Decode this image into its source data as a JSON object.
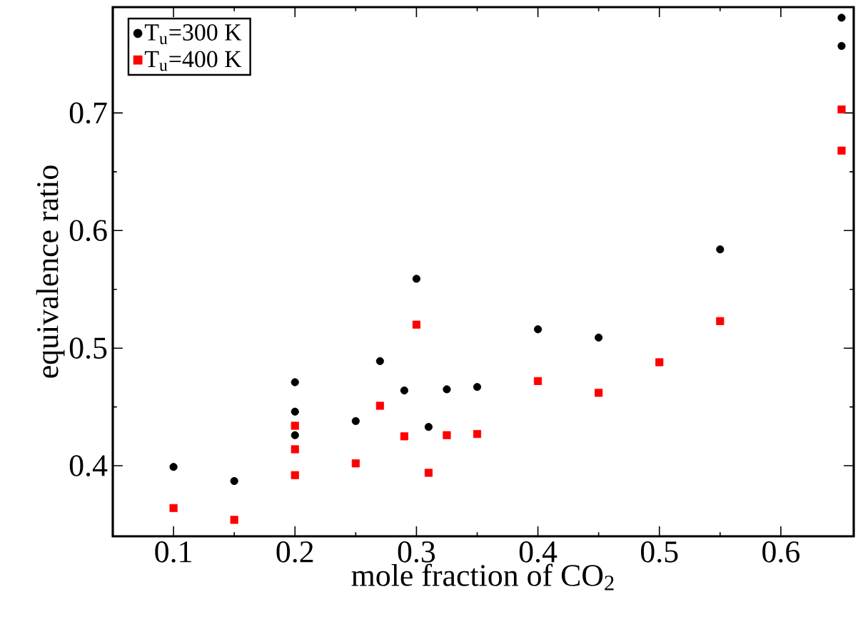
{
  "chart_data": {
    "type": "scatter",
    "xlabel": "mole fraction of CO$_{2}$",
    "ylabel": "equivalence ratio",
    "xlim": [
      0.05,
      0.66
    ],
    "ylim": [
      0.34,
      0.79
    ],
    "xticks": [
      0.1,
      0.2,
      0.3,
      0.4,
      0.5,
      0.6
    ],
    "yticks": [
      0.4,
      0.5,
      0.6,
      0.7
    ],
    "grid": false,
    "legend": "top left",
    "series": [
      {
        "name": "T$_{u}$=300 K",
        "color": "#000000",
        "marker": "circle",
        "x": [
          0.1,
          0.15,
          0.2,
          0.2,
          0.2,
          0.25,
          0.27,
          0.29,
          0.3,
          0.31,
          0.325,
          0.35,
          0.4,
          0.45,
          0.55,
          0.65,
          0.65
        ],
        "values": [
          0.399,
          0.387,
          0.471,
          0.446,
          0.426,
          0.438,
          0.489,
          0.464,
          0.559,
          0.433,
          0.465,
          0.467,
          0.516,
          0.509,
          0.584,
          0.781,
          0.757
        ]
      },
      {
        "name": "T$_{u}$=400 K",
        "color": "#ff0000",
        "marker": "square",
        "x": [
          0.1,
          0.15,
          0.2,
          0.2,
          0.2,
          0.25,
          0.27,
          0.29,
          0.3,
          0.31,
          0.325,
          0.35,
          0.4,
          0.45,
          0.5,
          0.55,
          0.65,
          0.65
        ],
        "values": [
          0.364,
          0.354,
          0.434,
          0.414,
          0.392,
          0.402,
          0.451,
          0.425,
          0.52,
          0.394,
          0.426,
          0.427,
          0.472,
          0.462,
          0.488,
          0.523,
          0.703,
          0.668
        ]
      }
    ]
  }
}
